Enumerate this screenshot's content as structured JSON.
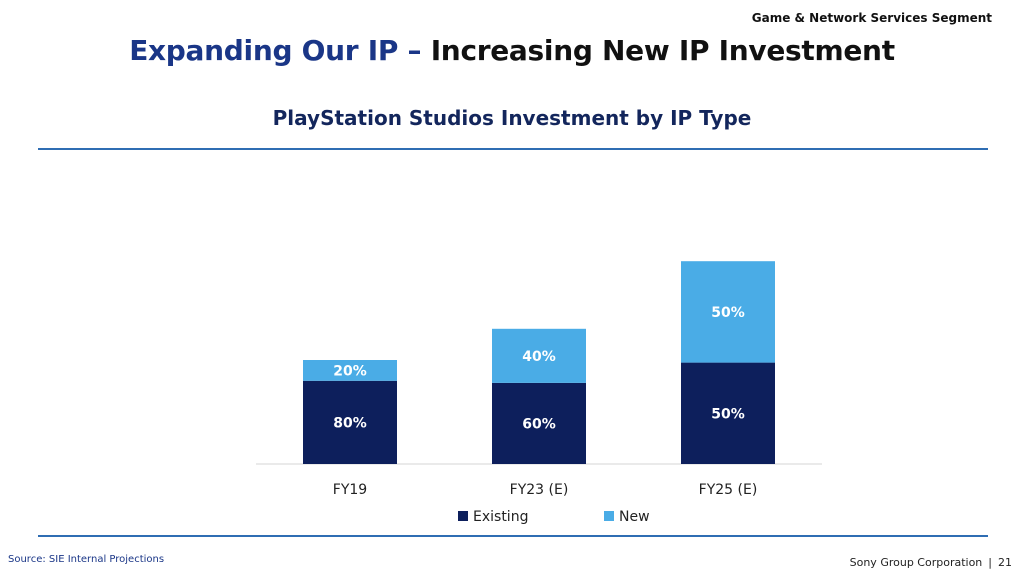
{
  "header": {
    "segment": "Game & Network Services Segment",
    "title_accent": "Expanding Our IP –",
    "title_main": "Increasing New IP Investment"
  },
  "footer": {
    "source": "Source: SIE Internal Projections",
    "company": "Sony Group Corporation",
    "page_number": "21"
  },
  "colors": {
    "existing": "#0d1f5c",
    "new": "#4aace6",
    "accent": "#1a3687"
  },
  "chart_data": {
    "type": "bar",
    "stacked": true,
    "title": "PlayStation Studios Investment by IP Type",
    "categories": [
      "FY19",
      "FY23 (E)",
      "FY25 (E)"
    ],
    "relative_total": [
      1.0,
      1.3,
      1.95
    ],
    "series": [
      {
        "name": "Existing",
        "values": [
          80,
          60,
          50
        ],
        "labels": [
          "80%",
          "60%",
          "50%"
        ]
      },
      {
        "name": "New",
        "values": [
          20,
          40,
          50
        ],
        "labels": [
          "20%",
          "40%",
          "50%"
        ]
      }
    ],
    "legend": "bottom-center",
    "grid": false
  }
}
